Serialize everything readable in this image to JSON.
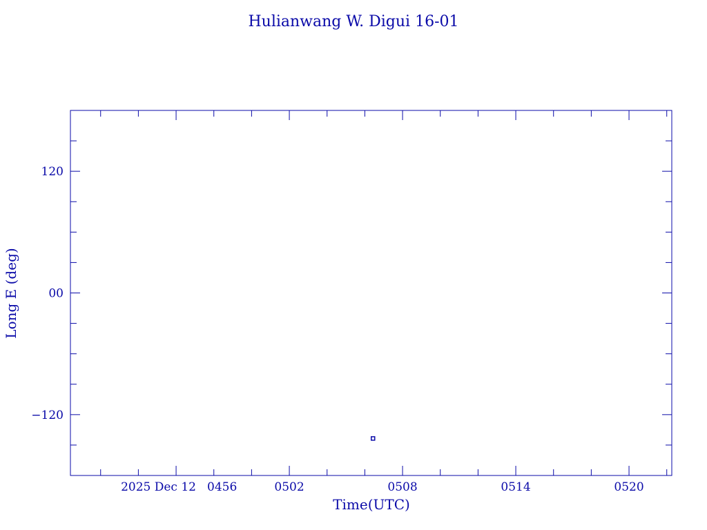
{
  "chart_data": {
    "type": "scatter",
    "title": "Hulianwang W. Digui 16-01",
    "xlabel": "Time(UTC)",
    "ylabel": "Long E (deg)",
    "date_label": "2025 Dec 12",
    "x_tick_labels": [
      "0456",
      "0502",
      "0508",
      "0514",
      "0520"
    ],
    "x_ticks_utc": [
      "04:56",
      "05:02",
      "05:08",
      "05:14",
      "05:20"
    ],
    "xlim_utc": [
      "04:50:24",
      "05:22:16"
    ],
    "x_minor_step_minutes": 2,
    "y_tick_labels": [
      "120",
      "00",
      "-120"
    ],
    "y_ticks": [
      120,
      0,
      -120
    ],
    "ylim": [
      -180,
      180
    ],
    "y_minor_step": 30,
    "grid": false,
    "points": [
      {
        "time_utc": "05:06:26",
        "long_e": -143.5
      }
    ],
    "color": "#0a0aa8"
  }
}
